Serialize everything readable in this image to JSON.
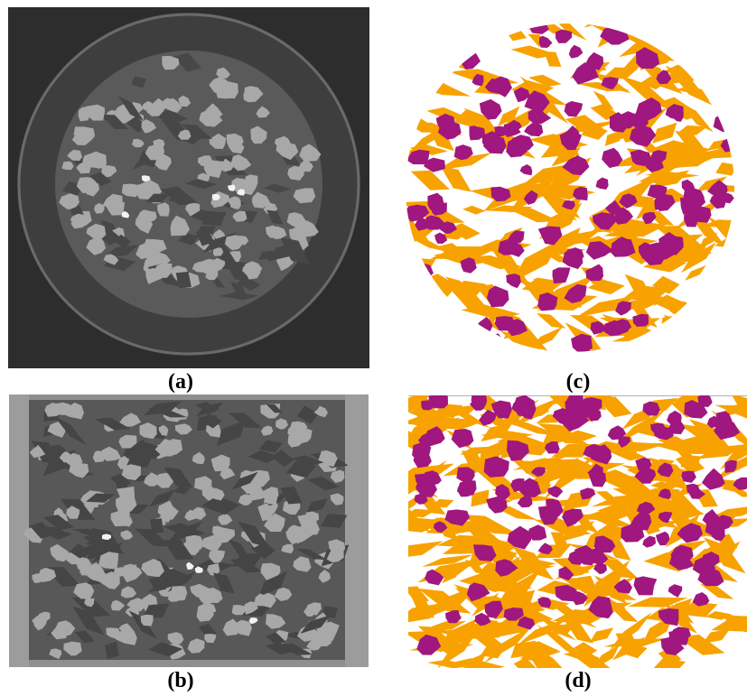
{
  "panels": [
    {
      "id": "a",
      "caption": "(a)",
      "kind": "ct-grayscale-cross-section"
    },
    {
      "id": "b",
      "caption": "(b)",
      "kind": "ct-grayscale-longitudinal-section"
    },
    {
      "id": "c",
      "caption": "(c)",
      "kind": "segmented-cross-section"
    },
    {
      "id": "d",
      "caption": "(d)",
      "kind": "segmented-longitudinal-section"
    }
  ],
  "colors": {
    "ct_background": "#2d2d2d",
    "ct_matrix": "#5a5a5a",
    "ct_grain": "#a8a8a8",
    "ct_bright": "#f2f2f2",
    "phase_grain": "#a0177f",
    "phase_fiber": "#f7a200",
    "pore": "#ffffff"
  }
}
